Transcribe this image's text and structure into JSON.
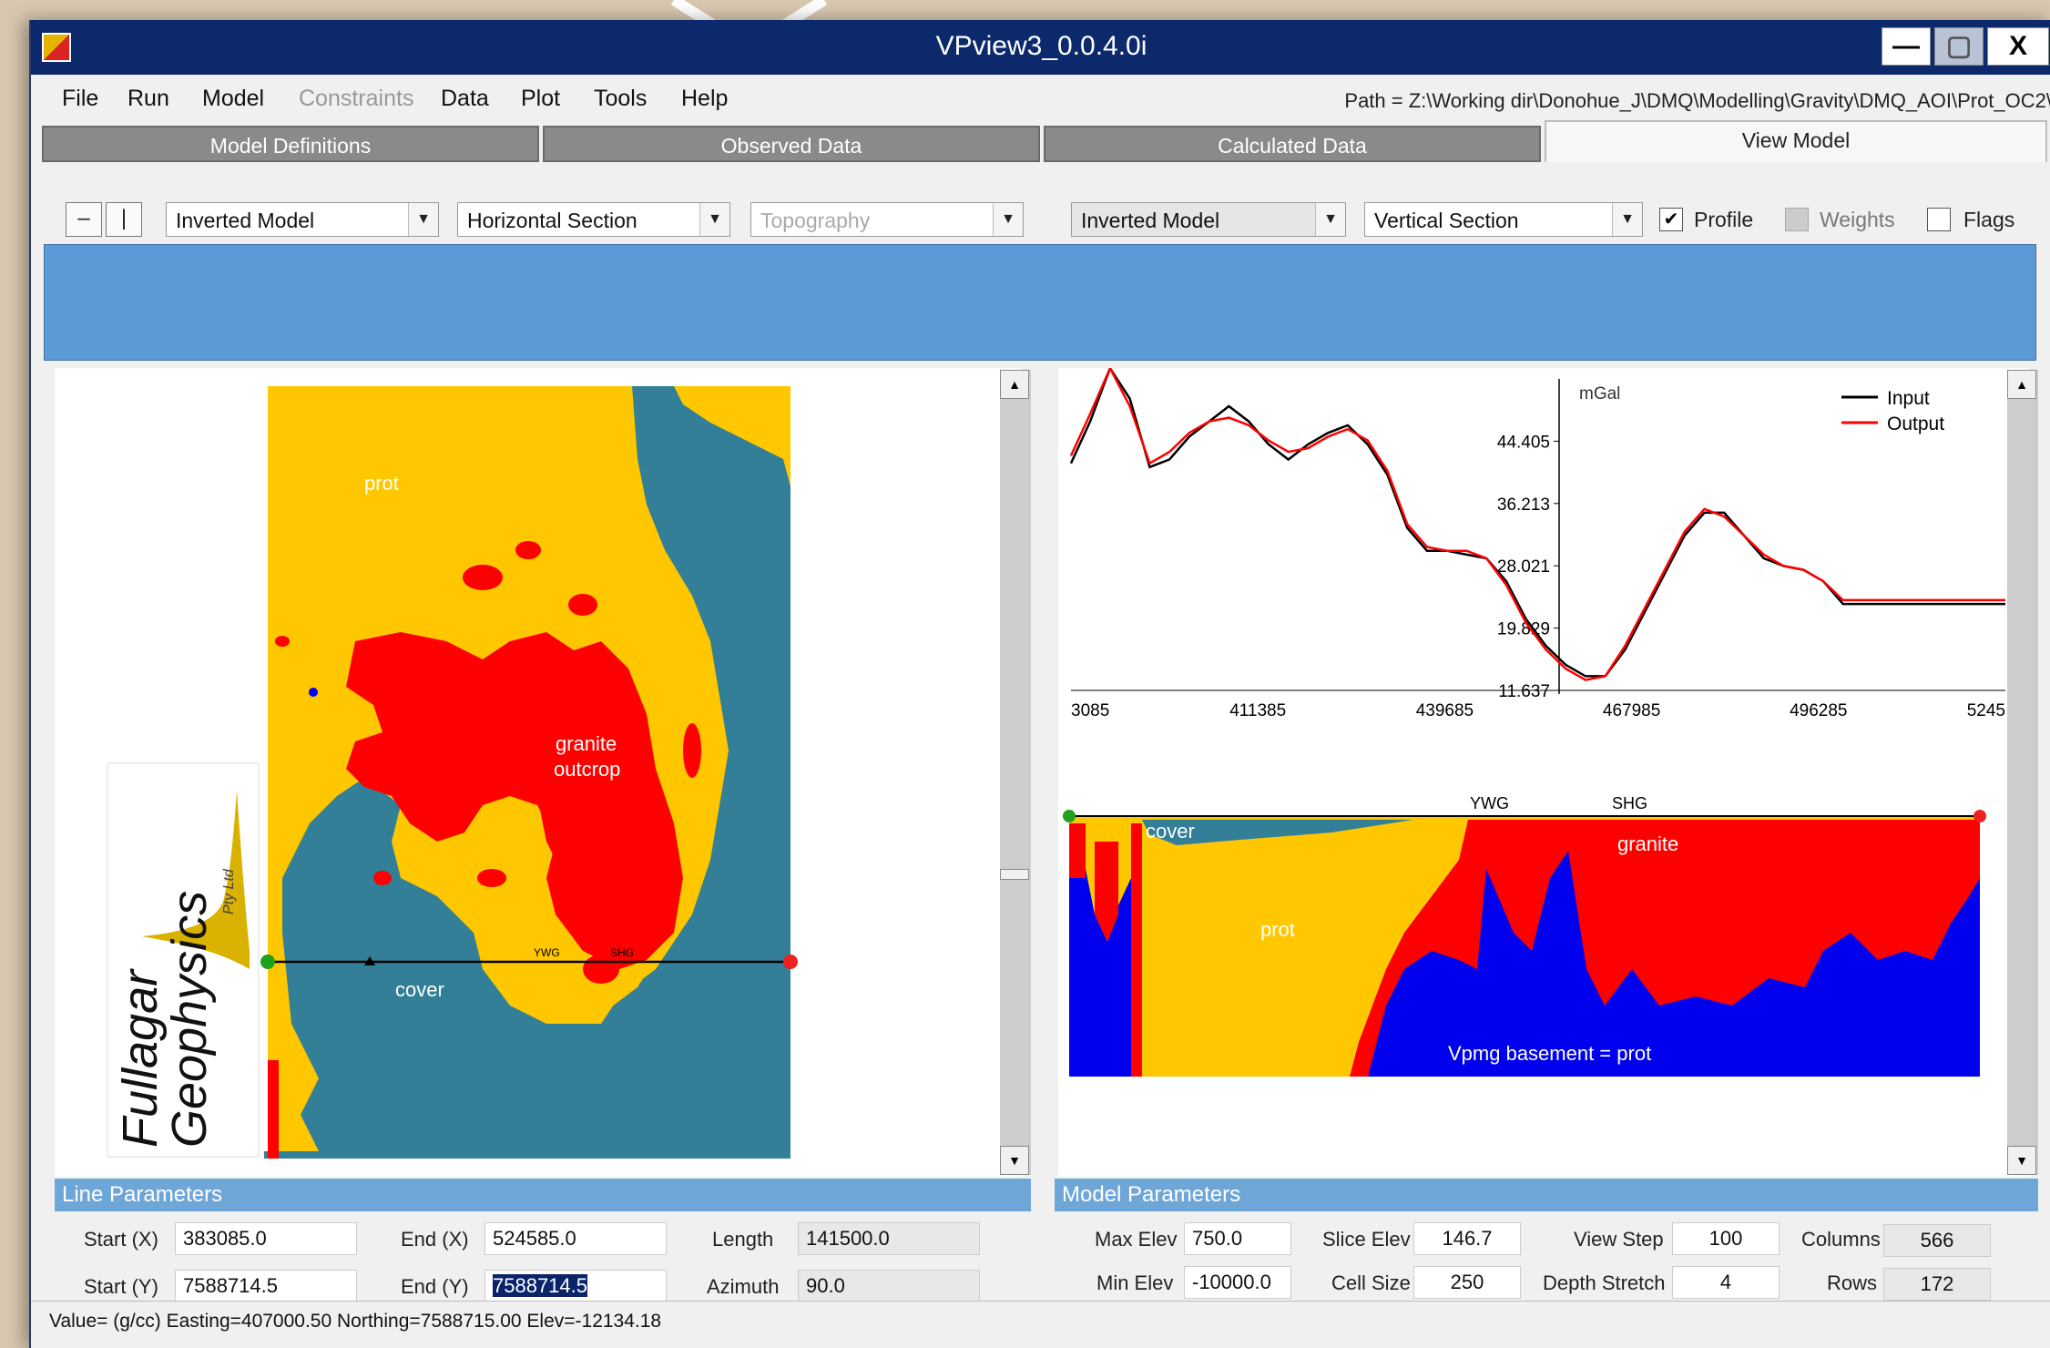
{
  "window": {
    "title": "VPview3_0.0.4.0i",
    "min": "—",
    "max": "▢",
    "close": "X"
  },
  "menu": [
    "File",
    "Run",
    "Model",
    "Constraints",
    "Data",
    "Plot",
    "Tools",
    "Help"
  ],
  "path": "Path = Z:\\Working dir\\Donohue_J\\DMQ\\Modelling\\Gravity\\DMQ_AOI\\Prot_OC2\\",
  "tabs": [
    "Model Definitions",
    "Observed Data",
    "Calculated Data",
    "View Model"
  ],
  "left_toolbar": {
    "btn1": "–",
    "btn2": "|",
    "combo1": "Inverted Model",
    "combo2": "Horizontal Section",
    "combo3": "Topography"
  },
  "right_toolbar": {
    "combo1": "Inverted Model",
    "combo2": "Vertical Section",
    "profile": "Profile",
    "weights": "Weights",
    "flags": "Flags",
    "check": "✔"
  },
  "map": {
    "labels": {
      "prot": "prot",
      "granite": "granite",
      "outcrop": "outcrop",
      "cover": "cover",
      "ywg": "YWG",
      "shg": "SHG"
    },
    "logo": {
      "line1": "Fullagar",
      "line2": "Geophysics",
      "line3": "Pty Ltd"
    },
    "colors": {
      "prot": "#ffc700",
      "granite": "#ff0000",
      "cover": "#327f97",
      "basement": "#0000ee"
    }
  },
  "chart_data": {
    "type": "line",
    "ylabel": "mGal",
    "yticks": [
      "44.405",
      "36.213",
      "28.021",
      "19.829",
      "11.637"
    ],
    "xticks": [
      "3085",
      "411385",
      "439685",
      "467985",
      "496285",
      "5245"
    ],
    "ylim": [
      11.637,
      52.597
    ],
    "xlim": [
      383085,
      524585
    ],
    "legend": "top-right",
    "series": [
      {
        "name": "Input",
        "color": "#000000",
        "x": [
          383085,
          386000,
          389000,
          392000,
          395000,
          398000,
          401000,
          404000,
          407000,
          410000,
          413000,
          416000,
          419000,
          422000,
          425000,
          428000,
          431000,
          434000,
          437000,
          440000,
          443000,
          446000,
          449000,
          452000,
          455000,
          458000,
          461000,
          464000,
          467000,
          470000,
          473000,
          476000,
          479000,
          482000,
          485000,
          488000,
          491000,
          494000,
          497000,
          500000,
          503000,
          506000,
          509000,
          512000,
          515000,
          518000,
          521000,
          524585
        ],
        "y": [
          41.5,
          47,
          54,
          50,
          41,
          42,
          45,
          47,
          49,
          47,
          44,
          42,
          44,
          45.5,
          46.5,
          44,
          40,
          33,
          30,
          30,
          29.5,
          29,
          26,
          21,
          17.5,
          15,
          13.5,
          13.5,
          17,
          22,
          27,
          32,
          35,
          35,
          32,
          29,
          28,
          27.5,
          26,
          23,
          23,
          23,
          23,
          23,
          23,
          23,
          23,
          23
        ]
      },
      {
        "name": "Output",
        "color": "#ff0000",
        "x": [
          383085,
          386000,
          389000,
          392000,
          395000,
          398000,
          401000,
          404000,
          407000,
          410000,
          413000,
          416000,
          419000,
          422000,
          425000,
          428000,
          431000,
          434000,
          437000,
          440000,
          443000,
          446000,
          449000,
          452000,
          455000,
          458000,
          461000,
          464000,
          467000,
          470000,
          473000,
          476000,
          479000,
          482000,
          485000,
          488000,
          491000,
          494000,
          497000,
          500000,
          503000,
          506000,
          509000,
          512000,
          515000,
          518000,
          521000,
          524585
        ],
        "y": [
          42.5,
          48,
          54,
          49,
          41.5,
          43,
          45.5,
          47,
          47.5,
          46.5,
          44.5,
          43,
          43.5,
          45,
          46,
          44.5,
          40.5,
          33.5,
          30.5,
          30,
          30,
          29,
          25.5,
          20.5,
          17,
          14.5,
          13,
          13.5,
          17.5,
          22.5,
          27.5,
          32.5,
          35.5,
          34.5,
          32,
          29.5,
          28,
          27.5,
          26,
          23.5,
          23.5,
          23.5,
          23.5,
          23.5,
          23.5,
          23.5,
          23.5,
          23.5
        ]
      }
    ]
  },
  "section": {
    "labels": {
      "cover": "cover",
      "prot": "prot",
      "granite": "granite",
      "ywg": "YWG",
      "shg": "SHG",
      "basement": "Vpmg basement = prot"
    }
  },
  "line_params": {
    "header": "Line Parameters",
    "start_x_label": "Start (X)",
    "start_x": "383085.0",
    "end_x_label": "End (X)",
    "end_x": "524585.0",
    "length_label": "Length",
    "length": "141500.0",
    "start_y_label": "Start (Y)",
    "start_y": "7588714.5",
    "end_y_label": "End (Y)",
    "end_y": "7588714.5",
    "azimuth_label": "Azimuth",
    "azimuth": "90.0"
  },
  "model_params": {
    "header": "Model Parameters",
    "max_elev_label": "Max Elev",
    "max_elev": "750.0",
    "slice_elev_label": "Slice Elev",
    "slice_elev": "146.7",
    "view_step_label": "View Step",
    "view_step": "100",
    "columns_label": "Columns",
    "columns": "566",
    "min_elev_label": "Min Elev",
    "min_elev": "-10000.0",
    "cell_size_label": "Cell Size",
    "cell_size": "250",
    "depth_stretch_label": "Depth Stretch",
    "depth_stretch": "4",
    "rows_label": "Rows",
    "rows": "172"
  },
  "status": "Value= (g/cc)  Easting=407000.50 Northing=7588715.00 Elev=-12134.18"
}
